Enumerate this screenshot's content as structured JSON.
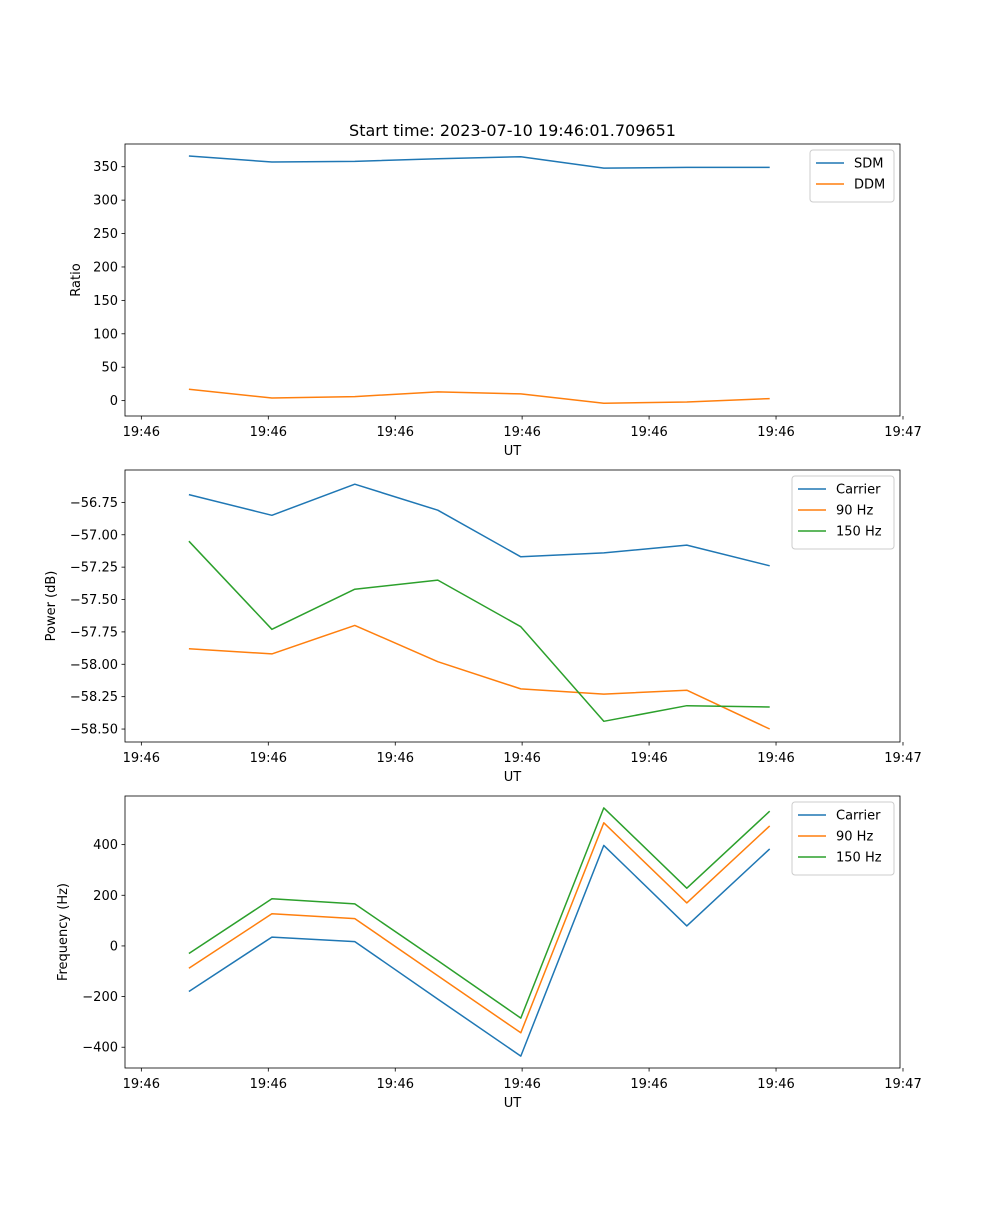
{
  "chart_data": [
    {
      "type": "line",
      "title": "Start time: 2023-07-10 19:46:01.709651",
      "xlabel": "UT",
      "ylabel": "Ratio",
      "x_tick_labels": [
        "19:46",
        "19:46",
        "19:46",
        "19:46",
        "19:46",
        "19:46",
        "19:47"
      ],
      "y_ticks": [
        0,
        50,
        100,
        150,
        200,
        250,
        300,
        350
      ],
      "y_tick_labels": [
        "0",
        "50",
        "100",
        "150",
        "200",
        "250",
        "300",
        "350"
      ],
      "ylim": [
        -23,
        384
      ],
      "legend_position": "top-right",
      "series": [
        {
          "name": "SDM",
          "color": "#1f77b4",
          "values": [
            366,
            357,
            358,
            362,
            365,
            348,
            349,
            349
          ]
        },
        {
          "name": "DDM",
          "color": "#ff7f0e",
          "values": [
            17,
            4,
            6,
            13,
            10,
            -4,
            -2,
            3
          ]
        }
      ]
    },
    {
      "type": "line",
      "title": "",
      "xlabel": "UT",
      "ylabel": "Power (dB)",
      "x_tick_labels": [
        "19:46",
        "19:46",
        "19:46",
        "19:46",
        "19:46",
        "19:46",
        "19:47"
      ],
      "y_ticks": [
        -56.75,
        -57.0,
        -57.25,
        -57.5,
        -57.75,
        -58.0,
        -58.25,
        -58.5
      ],
      "y_tick_labels": [
        "−56.75",
        "−57.00",
        "−57.25",
        "−57.50",
        "−57.75",
        "−58.00",
        "−58.25",
        "−58.50"
      ],
      "ylim": [
        -58.6,
        -56.5
      ],
      "legend_position": "top-right",
      "series": [
        {
          "name": "Carrier",
          "color": "#1f77b4",
          "values": [
            -56.69,
            -56.85,
            -56.61,
            -56.81,
            -57.17,
            -57.14,
            -57.08,
            -57.24
          ]
        },
        {
          "name": "90 Hz",
          "color": "#ff7f0e",
          "values": [
            -57.88,
            -57.92,
            -57.7,
            -57.98,
            -58.19,
            -58.23,
            -58.2,
            -58.5
          ]
        },
        {
          "name": "150 Hz",
          "color": "#2ca02c",
          "values": [
            -57.05,
            -57.73,
            -57.42,
            -57.35,
            -57.71,
            -58.44,
            -58.32,
            -58.33
          ]
        }
      ]
    },
    {
      "type": "line",
      "title": "",
      "xlabel": "UT",
      "ylabel": "Frequency (Hz)",
      "x_tick_labels": [
        "19:46",
        "19:46",
        "19:46",
        "19:46",
        "19:46",
        "19:46",
        "19:47"
      ],
      "y_ticks": [
        -400,
        -200,
        0,
        200,
        400
      ],
      "y_tick_labels": [
        "−400",
        "−200",
        "0",
        "200",
        "400"
      ],
      "ylim": [
        -482,
        592
      ],
      "legend_position": "top-right",
      "series": [
        {
          "name": "Carrier",
          "color": "#1f77b4",
          "values": [
            -180,
            35,
            17,
            -210,
            -435,
            397,
            79,
            383
          ]
        },
        {
          "name": "90 Hz",
          "color": "#ff7f0e",
          "values": [
            -88,
            127,
            108,
            -118,
            -343,
            486,
            170,
            474
          ]
        },
        {
          "name": "150 Hz",
          "color": "#2ca02c",
          "values": [
            -30,
            186,
            166,
            -58,
            -285,
            545,
            228,
            532
          ]
        }
      ]
    }
  ]
}
